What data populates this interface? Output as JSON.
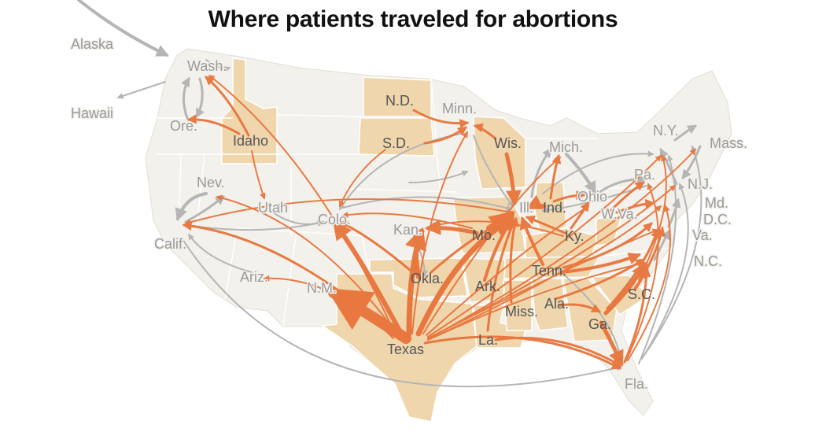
{
  "title": "Where patients traveled for abortions",
  "colors": {
    "land": "#f3f1ec",
    "banned_state": "#f0d6ad",
    "border": "#ffffff",
    "flow_out_of_banned_state": "#e8743b",
    "flow_other": "#b5b5b5"
  },
  "labels": {
    "alaska": "Alaska",
    "hawaii": "Hawaii",
    "wash": "Wash.",
    "ore": "Ore.",
    "idaho": "Idaho",
    "nev": "Nev.",
    "calif": "Calif.",
    "utah": "Utah",
    "colo": "Colo.",
    "ariz": "Ariz.",
    "nm": "N.M.",
    "nd": "N.D.",
    "sd": "S.D.",
    "minn": "Minn.",
    "wis": "Wis.",
    "mich": "Mich.",
    "kan": "Kan.",
    "mo": "Mo.",
    "ill": "Ill.",
    "ind": "Ind.",
    "ohio": "Ohio",
    "ky": "Ky.",
    "wva": "W.Va.",
    "pa": "Pa.",
    "ny": "N.Y.",
    "mass": "Mass.",
    "nj": "N.J.",
    "md": "Md.",
    "dc": "D.C.",
    "va": "Va.",
    "nc": "N.C.",
    "sc": "S.C.",
    "tenn": "Tenn.",
    "ark": "Ark.",
    "okla": "Okla.",
    "miss": "Miss.",
    "ala": "Ala.",
    "ga": "Ga.",
    "la": "La.",
    "texas": "Texas",
    "fla": "Fla."
  }
}
